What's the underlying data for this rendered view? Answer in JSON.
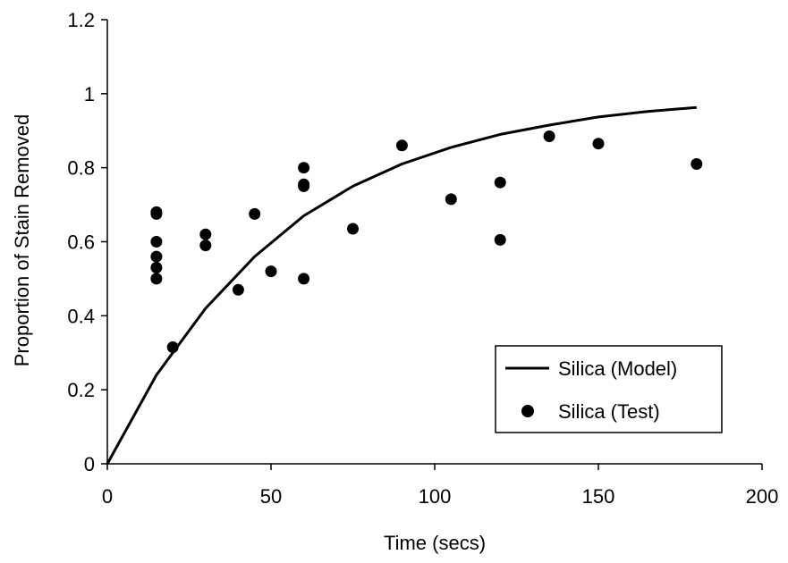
{
  "chart_data": {
    "type": "scatter",
    "title": "",
    "xlabel": "Time (secs)",
    "ylabel": "Proportion of Stain Removed",
    "xlim": [
      0,
      200
    ],
    "ylim": [
      0,
      1.2
    ],
    "x_ticks": [
      "0",
      "50",
      "100",
      "150",
      "200"
    ],
    "y_ticks": [
      "0",
      "0.2",
      "0.4",
      "0.6",
      "0.8",
      "1",
      "1.2"
    ],
    "grid": false,
    "legend_position": "bottom-right",
    "colors": {
      "series": "#000000",
      "background": "#ffffff"
    },
    "series": [
      {
        "name": "Silica (Model)",
        "kind": "line",
        "points": [
          [
            0,
            0
          ],
          [
            15,
            0.24
          ],
          [
            30,
            0.42
          ],
          [
            45,
            0.56
          ],
          [
            60,
            0.67
          ],
          [
            75,
            0.75
          ],
          [
            90,
            0.81
          ],
          [
            105,
            0.855
          ],
          [
            120,
            0.89
          ],
          [
            135,
            0.915
          ],
          [
            150,
            0.937
          ],
          [
            165,
            0.952
          ],
          [
            180,
            0.963
          ]
        ]
      },
      {
        "name": "Silica (Test)",
        "kind": "scatter",
        "points": [
          [
            15,
            0.68
          ],
          [
            15,
            0.675
          ],
          [
            15,
            0.6
          ],
          [
            15,
            0.56
          ],
          [
            15,
            0.53
          ],
          [
            15,
            0.5
          ],
          [
            20,
            0.315
          ],
          [
            30,
            0.62
          ],
          [
            30,
            0.59
          ],
          [
            40,
            0.47
          ],
          [
            45,
            0.675
          ],
          [
            50,
            0.52
          ],
          [
            60,
            0.8
          ],
          [
            60,
            0.755
          ],
          [
            60,
            0.75
          ],
          [
            60,
            0.5
          ],
          [
            75,
            0.635
          ],
          [
            90,
            0.86
          ],
          [
            105,
            0.715
          ],
          [
            120,
            0.76
          ],
          [
            120,
            0.605
          ],
          [
            135,
            0.885
          ],
          [
            150,
            0.865
          ],
          [
            180,
            0.81
          ]
        ]
      }
    ]
  }
}
